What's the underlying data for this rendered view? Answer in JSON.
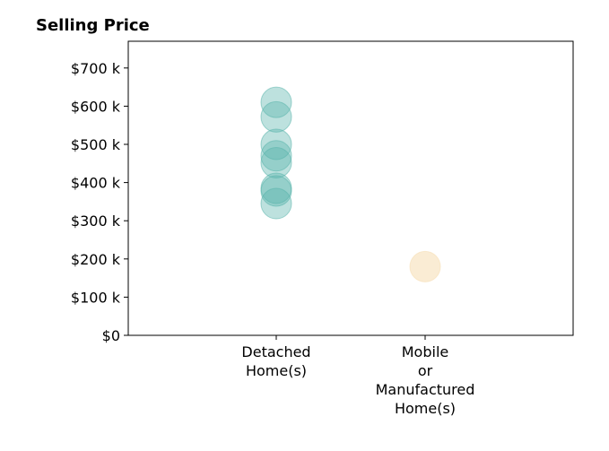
{
  "chart_data": {
    "type": "scatter",
    "title": "Selling Price",
    "xlabel": "",
    "ylabel": "",
    "categories": [
      [
        "Detached",
        "Home(s)"
      ],
      [
        "Mobile",
        "or",
        "Manufactured",
        "Home(s)"
      ]
    ],
    "y_ticks": [
      0,
      100000,
      200000,
      300000,
      400000,
      500000,
      600000,
      700000
    ],
    "y_tick_labels": [
      "$0",
      "$100 k",
      "$200 k",
      "$300 k",
      "$400 k",
      "$500 k",
      "$600 k",
      "$700 k"
    ],
    "ylim": [
      0,
      770000
    ],
    "grid": false,
    "series": [
      {
        "category_index": 0,
        "color": "#5ab4ac",
        "values": [
          610000,
          572000,
          500000,
          470000,
          452000,
          385000,
          378000,
          345000
        ]
      },
      {
        "category_index": 1,
        "color": "#f6ddb0",
        "values": [
          180000
        ]
      }
    ]
  }
}
